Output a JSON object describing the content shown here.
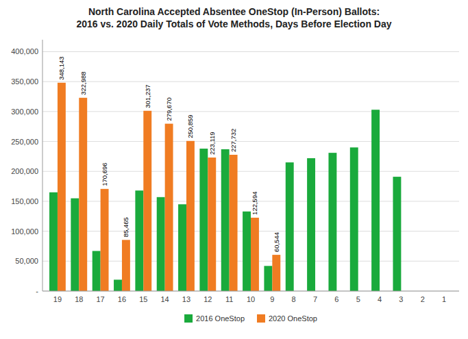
{
  "chart_data": {
    "type": "bar",
    "title": "North Carolina Accepted Absentee OneStop (In-Person) Ballots:\n2016 vs. 2020 Daily Totals of Vote Methods, Days Before Election Day",
    "categories": [
      19,
      18,
      17,
      16,
      15,
      14,
      13,
      12,
      11,
      10,
      9,
      8,
      7,
      6,
      5,
      4,
      3,
      2,
      1
    ],
    "series": [
      {
        "name": "2016 OneStop",
        "color": "#1aaa3c",
        "values": [
          165000,
          155000,
          67000,
          19000,
          168000,
          157000,
          145000,
          238000,
          237000,
          133000,
          42000,
          215000,
          222000,
          231000,
          240000,
          303000,
          191000,
          0,
          0
        ]
      },
      {
        "name": "2020 OneStop",
        "color": "#f07c22",
        "data_labels": true,
        "values": [
          348143,
          322988,
          170696,
          85465,
          301237,
          279670,
          250859,
          223119,
          227732,
          122594,
          60544,
          0,
          0,
          0,
          0,
          0,
          0,
          0,
          0
        ],
        "value_labels": [
          "348,143",
          "322,988",
          "170,696",
          "85,465",
          "301,237",
          "279,670",
          "250,859",
          "223,119",
          "227,732",
          "122,594",
          "60,544",
          null,
          null,
          null,
          null,
          null,
          null,
          null,
          null
        ]
      }
    ],
    "ylim": [
      0,
      420000
    ],
    "yticks": [
      {
        "value": 0,
        "label": "-"
      },
      {
        "value": 50000,
        "label": "50,000"
      },
      {
        "value": 100000,
        "label": "100,000"
      },
      {
        "value": 150000,
        "label": "150,000"
      },
      {
        "value": 200000,
        "label": "200,000"
      },
      {
        "value": 250000,
        "label": "250,000"
      },
      {
        "value": 300000,
        "label": "300,000"
      },
      {
        "value": 350000,
        "label": "350,000"
      },
      {
        "value": 400000,
        "label": "400,000"
      }
    ],
    "grid": true,
    "legend": "bottom"
  }
}
